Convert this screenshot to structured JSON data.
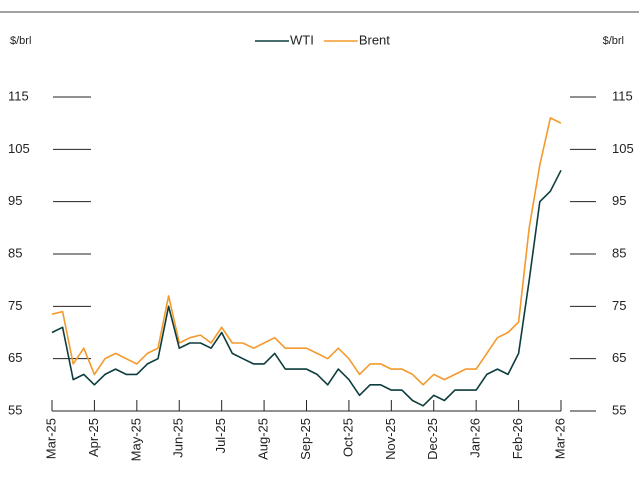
{
  "chart_data": {
    "type": "line",
    "y_label": "$/brl",
    "y2_label": "$/brl",
    "categories": [
      "Mar-25",
      null,
      null,
      null,
      "Apr-25",
      null,
      null,
      null,
      "May-25",
      null,
      null,
      null,
      "Jun-25",
      null,
      null,
      null,
      "Jul-25",
      null,
      null,
      null,
      "Aug-25",
      null,
      null,
      null,
      "Sep-25",
      null,
      null,
      null,
      "Oct-25",
      null,
      null,
      null,
      "Nov-25",
      null,
      null,
      null,
      "Dec-25",
      null,
      null,
      null,
      "Jan-26",
      null,
      null,
      null,
      "Feb-26",
      null,
      null,
      null,
      "Mar-26"
    ],
    "series": [
      {
        "name": "WTI",
        "color": "#0d3d3d",
        "values": [
          70,
          71,
          61,
          62,
          60,
          62,
          63,
          62,
          62,
          64,
          65,
          75,
          67,
          68,
          68,
          67,
          70,
          66,
          65,
          64,
          64,
          66,
          63,
          63,
          63,
          62,
          60,
          63,
          61,
          58,
          60,
          60,
          59,
          59,
          57,
          56,
          58,
          57,
          59,
          59,
          59,
          62,
          63,
          62,
          66,
          80,
          95,
          97,
          101
        ]
      },
      {
        "name": "Brent",
        "color": "#f39a2c",
        "values": [
          73.5,
          74,
          64,
          67,
          62,
          65,
          66,
          65,
          64,
          66,
          67,
          77,
          68,
          69,
          69.5,
          68,
          71,
          68,
          68,
          67,
          68,
          69,
          67,
          67,
          67,
          66,
          65,
          67,
          65,
          62,
          64,
          64,
          63,
          63,
          62,
          60,
          62,
          61,
          62,
          63,
          63,
          66,
          69,
          70,
          72,
          90,
          102,
          111,
          110
        ]
      }
    ],
    "ylim": [
      55,
      115
    ],
    "yticks": [
      55,
      65,
      75,
      85,
      95,
      105,
      115
    ],
    "y2lim": [
      55,
      115
    ],
    "y2ticks": [
      55,
      65,
      75,
      85,
      95,
      105,
      115
    ],
    "legend": "top"
  }
}
